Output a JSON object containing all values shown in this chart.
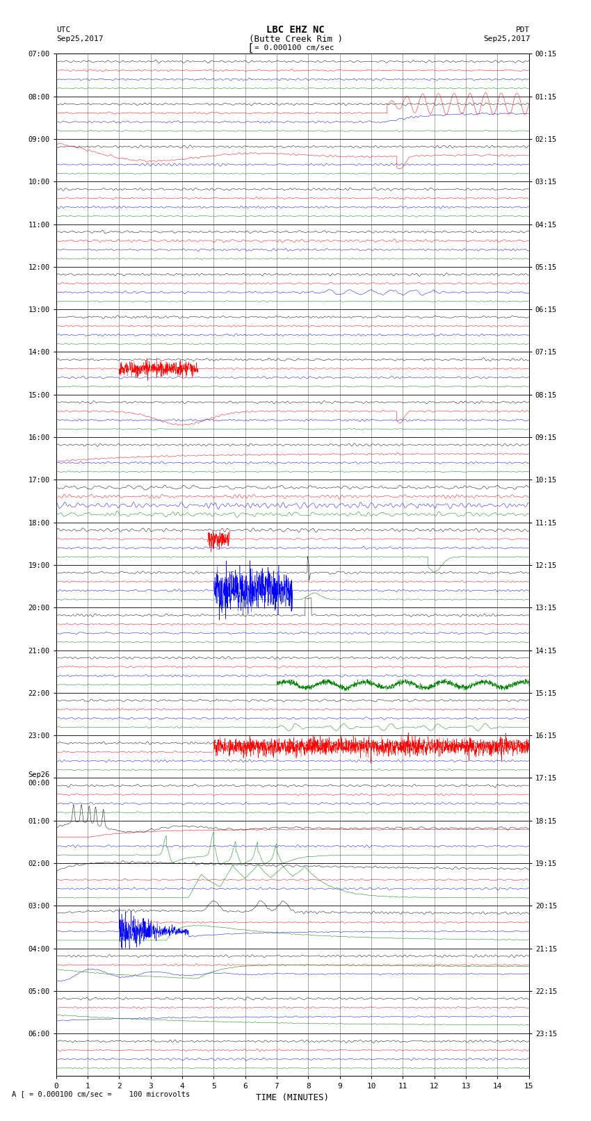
{
  "title_line1": "LBC EHZ NC",
  "title_line2": "(Butte Creek Rim )",
  "scale_label": "= 0.000100 cm/sec",
  "utc_label1": "UTC",
  "utc_label2": "Sep25,2017",
  "pdt_label1": "PDT",
  "pdt_label2": "Sep25,2017",
  "bottom_label": "A [ = 0.000100 cm/sec =    100 microvolts",
  "xlabel": "TIME (MINUTES)",
  "left_times": [
    "07:00",
    "08:00",
    "09:00",
    "10:00",
    "11:00",
    "12:00",
    "13:00",
    "14:00",
    "15:00",
    "16:00",
    "17:00",
    "18:00",
    "19:00",
    "20:00",
    "21:00",
    "22:00",
    "23:00",
    "Sep26\n00:00",
    "01:00",
    "02:00",
    "03:00",
    "04:00",
    "05:00",
    "06:00"
  ],
  "right_times": [
    "00:15",
    "01:15",
    "02:15",
    "03:15",
    "04:15",
    "05:15",
    "06:15",
    "07:15",
    "08:15",
    "09:15",
    "10:15",
    "11:15",
    "12:15",
    "13:15",
    "14:15",
    "15:15",
    "16:15",
    "17:15",
    "18:15",
    "19:15",
    "20:15",
    "21:15",
    "22:15",
    "23:15"
  ],
  "n_rows": 24,
  "n_minutes": 15,
  "background_color": "#ffffff",
  "figsize": [
    8.5,
    16.13
  ],
  "dpi": 100
}
